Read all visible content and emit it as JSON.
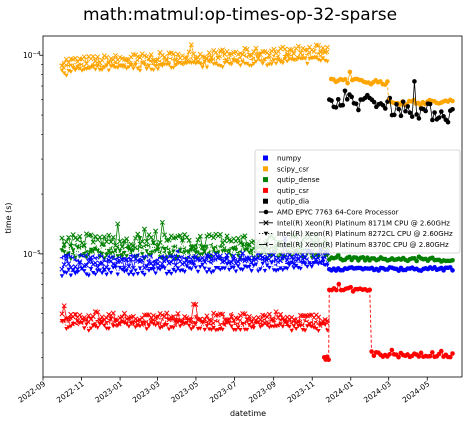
{
  "chart_data": {
    "type": "scatter",
    "title": "math:matmul:op-times-op-32-sparse",
    "xlabel": "datetime",
    "ylabel": "time (s)",
    "yscale": "log",
    "xlim": [
      "2022-09-01",
      "2024-06-25"
    ],
    "ylim": [
      2.4e-06,
      0.000125
    ],
    "x_ticks": [
      "2022-09",
      "2022-11",
      "2023-01",
      "2023-03",
      "2023-05",
      "2023-07",
      "2023-09",
      "2023-11",
      "2024-01",
      "2024-03",
      "2024-05"
    ],
    "y_ticks": [
      {
        "value": 1e-05,
        "base": "10",
        "exp": "−5"
      },
      {
        "value": 0.0001,
        "base": "10",
        "exp": "−4"
      }
    ],
    "grid": false,
    "legend_position": "center-right",
    "series": [
      {
        "name": "numpy",
        "color": "#0000ff",
        "marker": "square"
      },
      {
        "name": "scipy_csr",
        "color": "#ffa500",
        "marker": "square"
      },
      {
        "name": "qutip_dense",
        "color": "#008000",
        "marker": "square"
      },
      {
        "name": "qutip_csr",
        "color": "#ff0000",
        "marker": "square"
      },
      {
        "name": "qutip_dia",
        "color": "#000000",
        "marker": "square"
      }
    ],
    "machines": [
      {
        "name": "AMD EPYC 7763 64-Core Processor",
        "marker": "circle",
        "linestyle": "solid"
      },
      {
        "name": "Intel(R) Xeon(R) Platinum 8171M CPU @ 2.60GHz",
        "marker": "x",
        "linestyle": "solid"
      },
      {
        "name": "Intel(R) Xeon(R) Platinum 8272CL CPU @ 2.60GHz",
        "marker": "triangle-down",
        "linestyle": "dotted"
      },
      {
        "name": "Intel(R) Xeon(R) Platinum 8370C CPU @ 2.80GHz",
        "marker": "tri-left",
        "linestyle": "dashdot"
      }
    ],
    "segments": [
      {
        "series": "scipy_csr",
        "machine": "Intel(R) Xeon(R) Platinum 8171M CPU @ 2.60GHz",
        "start": "2022-10-01",
        "end": "2023-11-25",
        "level_start": 9.3e-05,
        "level_end": 0.000108,
        "spread": 0.05
      },
      {
        "series": "scipy_csr",
        "machine": "Intel(R) Xeon(R) Platinum 8272CL CPU @ 2.60GHz",
        "start": "2022-10-01",
        "end": "2023-11-25",
        "level_start": 8.4e-05,
        "level_end": 9.5e-05,
        "spread": 0.04
      },
      {
        "series": "scipy_csr",
        "machine": "Intel(R) Xeon(R) Platinum 8370C CPU @ 2.80GHz",
        "start": "2022-10-01",
        "end": "2023-11-25",
        "level_start": 8.8e-05,
        "level_end": 0.0001,
        "spread": 0.04
      },
      {
        "series": "scipy_csr",
        "machine": "AMD EPYC 7763 64-Core Processor",
        "start": "2023-12-01",
        "end": "2024-02-28",
        "level_start": 7.5e-05,
        "level_end": 7.3e-05,
        "spread": 0.03
      },
      {
        "series": "scipy_csr",
        "machine": "AMD EPYC 7763 64-Core Processor",
        "start": "2024-03-01",
        "end": "2024-06-10",
        "level_start": 5.8e-05,
        "level_end": 5.8e-05,
        "spread": 0.03
      },
      {
        "series": "qutip_dia",
        "machine": "AMD EPYC 7763 64-Core Processor",
        "start": "2023-11-28",
        "end": "2024-06-10",
        "level_start": 6.1e-05,
        "level_end": 5e-05,
        "spread": 0.1
      },
      {
        "series": "qutip_dense",
        "machine": "Intel(R) Xeon(R) Platinum 8171M CPU @ 2.60GHz",
        "start": "2022-10-01",
        "end": "2023-11-25",
        "level_start": 1.18e-05,
        "level_end": 1.15e-05,
        "spread": 0.08
      },
      {
        "series": "qutip_dense",
        "machine": "Intel(R) Xeon(R) Platinum 8272CL CPU @ 2.60GHz",
        "start": "2022-10-01",
        "end": "2023-11-25",
        "level_start": 1e-05,
        "level_end": 1e-05,
        "spread": 0.06
      },
      {
        "series": "qutip_dense",
        "machine": "Intel(R) Xeon(R) Platinum 8370C CPU @ 2.80GHz",
        "start": "2022-10-01",
        "end": "2023-11-25",
        "level_start": 1.05e-05,
        "level_end": 1.05e-05,
        "spread": 0.06
      },
      {
        "series": "qutip_dense",
        "machine": "AMD EPYC 7763 64-Core Processor",
        "start": "2023-11-28",
        "end": "2024-06-10",
        "level_start": 9.5e-06,
        "level_end": 9.3e-06,
        "spread": 0.02
      },
      {
        "series": "numpy",
        "machine": "Intel(R) Xeon(R) Platinum 8171M CPU @ 2.60GHz",
        "start": "2022-10-01",
        "end": "2023-11-25",
        "level_start": 8.6e-06,
        "level_end": 1e-05,
        "spread": 0.06
      },
      {
        "series": "numpy",
        "machine": "Intel(R) Xeon(R) Platinum 8272CL CPU @ 2.60GHz",
        "start": "2022-10-01",
        "end": "2023-11-25",
        "level_start": 8e-06,
        "level_end": 8.8e-06,
        "spread": 0.05
      },
      {
        "series": "numpy",
        "machine": "Intel(R) Xeon(R) Platinum 8370C CPU @ 2.80GHz",
        "start": "2022-10-01",
        "end": "2023-11-25",
        "level_start": 9.6e-06,
        "level_end": 9.2e-06,
        "spread": 0.04
      },
      {
        "series": "numpy",
        "machine": "AMD EPYC 7763 64-Core Processor",
        "start": "2023-11-28",
        "end": "2024-06-10",
        "level_start": 8.4e-06,
        "level_end": 8.4e-06,
        "spread": 0.02
      },
      {
        "series": "qutip_csr",
        "machine": "Intel(R) Xeon(R) Platinum 8171M CPU @ 2.60GHz",
        "start": "2022-10-01",
        "end": "2023-11-25",
        "level_start": 4.9e-06,
        "level_end": 4.7e-06,
        "spread": 0.05
      },
      {
        "series": "qutip_csr",
        "machine": "Intel(R) Xeon(R) Platinum 8272CL CPU @ 2.60GHz",
        "start": "2022-10-01",
        "end": "2023-11-25",
        "level_start": 4.4e-06,
        "level_end": 4.3e-06,
        "spread": 0.05
      },
      {
        "series": "qutip_csr",
        "machine": "Intel(R) Xeon(R) Platinum 8370C CPU @ 2.80GHz",
        "start": "2022-10-01",
        "end": "2023-11-25",
        "level_start": 4.6e-06,
        "level_end": 4.5e-06,
        "spread": 0.04
      },
      {
        "series": "qutip_csr",
        "machine": "AMD EPYC 7763 64-Core Processor",
        "start": "2023-11-20",
        "end": "2023-11-27",
        "level_start": 2.9e-06,
        "level_end": 3e-06,
        "spread": 0.04
      },
      {
        "series": "qutip_csr",
        "machine": "AMD EPYC 7763 64-Core Processor",
        "start": "2023-11-28",
        "end": "2024-01-31",
        "level_start": 6.6e-06,
        "level_end": 6.6e-06,
        "spread": 0.02
      },
      {
        "series": "qutip_csr",
        "machine": "AMD EPYC 7763 64-Core Processor",
        "start": "2024-02-03",
        "end": "2024-06-10",
        "level_start": 3.1e-06,
        "level_end": 3.1e-06,
        "spread": 0.03
      }
    ]
  }
}
